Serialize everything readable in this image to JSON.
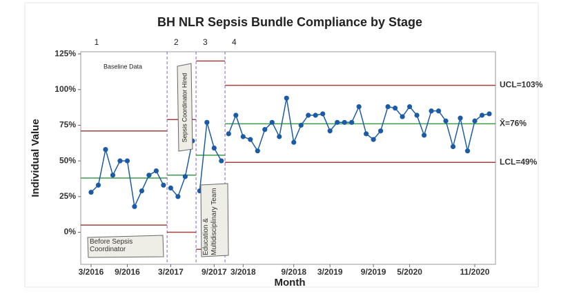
{
  "chart_data": {
    "type": "control",
    "title": "BH NLR Sepsis Bundle Compliance by Stage",
    "x_label": "Month",
    "y_label": "Individual Value",
    "categories": [
      "3/2016",
      null,
      null,
      null,
      null,
      "9/2016",
      null,
      null,
      null,
      null,
      null,
      "3/2017",
      null,
      null,
      null,
      null,
      null,
      "9/2017",
      null,
      null,
      null,
      "3/2018",
      null,
      null,
      null,
      null,
      null,
      null,
      "9/2018",
      null,
      null,
      null,
      null,
      "3/2019",
      null,
      null,
      null,
      null,
      null,
      "9/2019",
      null,
      null,
      null,
      null,
      "5/2020",
      null,
      null,
      null,
      null,
      null,
      null,
      null,
      null,
      "11/2020",
      null,
      null
    ],
    "ylim": [
      -22.5,
      126.5
    ],
    "yticks": [
      {
        "value": 0,
        "label": "0%"
      },
      {
        "value": 25,
        "label": "25%"
      },
      {
        "value": 50,
        "label": "50%"
      },
      {
        "value": 75,
        "label": "75%"
      },
      {
        "value": 100,
        "label": "100%"
      },
      {
        "value": 125,
        "label": "125%"
      }
    ],
    "point_color": "#1b5ba6",
    "limit_color": "#a3413f",
    "center_color": "#3a9a48",
    "stage_line_color": "#8b5ad8",
    "stages": [
      {
        "label": "1",
        "values": [
          28,
          33,
          58,
          40,
          50,
          50,
          18,
          29,
          40,
          43,
          33
        ],
        "ucl": 71,
        "center": 38,
        "lcl": 5
      },
      {
        "label": "2",
        "values": [
          31,
          25,
          39,
          64
        ],
        "ucl": 79,
        "center": 40,
        "lcl": 0
      },
      {
        "label": "3",
        "values": [
          29,
          77,
          59,
          50
        ],
        "ucl": 120,
        "center": 54,
        "lcl": -12
      },
      {
        "label": "4",
        "values": [
          69,
          82,
          67,
          65,
          57,
          72,
          77,
          67,
          94,
          63,
          75,
          82,
          82,
          83,
          71,
          77,
          77,
          77,
          88,
          69,
          65,
          71,
          88,
          87,
          81,
          88,
          82,
          68,
          85,
          85,
          78,
          60,
          80,
          57,
          78,
          82,
          83
        ],
        "ucl": 103,
        "center": 76,
        "lcl": 49,
        "ucl_label": "UCL=103%",
        "center_label": "X̄=76%",
        "lcl_label": "LCL=49%"
      }
    ],
    "annotations": {
      "baseline": "Baseline Data",
      "before": "Before Sepsis Coordinator",
      "hired": "Sepsis Coordinator Hired",
      "education": "Education & Multidisciplinary Team"
    }
  }
}
